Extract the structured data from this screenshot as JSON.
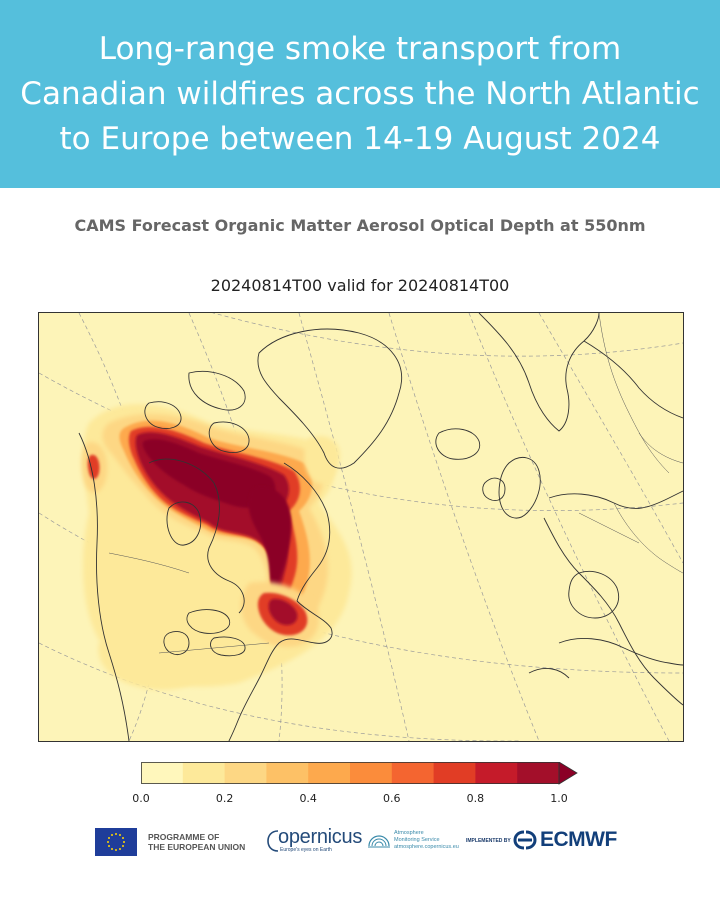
{
  "header": {
    "title_line_1": "Long-range smoke transport from",
    "title_line_2": "Canadian wildfires across the North Atlantic",
    "title_line_3": "to Europe between 14-19 August 2024"
  },
  "subtitle": "CAMS Forecast Organic Matter Aerosol Optical Depth at 550nm",
  "map": {
    "title": "20240814T00 valid for 20240814T00",
    "background_color": "#fdf4b8",
    "coastline_color": "#333333",
    "gridline_color": "#999999"
  },
  "colorbar": {
    "min": 0.0,
    "max": 1.0,
    "step": 0.1,
    "extend": "max",
    "colors": [
      "#fff7bc",
      "#fde99a",
      "#fdd784",
      "#fdc166",
      "#fda94d",
      "#fb8c3b",
      "#f46530",
      "#e13d25",
      "#c51b2a",
      "#a30f2a",
      "#8b0026"
    ],
    "ticks": [
      "0.0",
      "0.2",
      "0.4",
      "0.6",
      "0.8",
      "1.0"
    ]
  },
  "footer": {
    "eu_line_1": "PROGRAMME OF",
    "eu_line_2": "THE EUROPEAN UNION",
    "copernicus_word": "opernicus",
    "copernicus_tagline": "Europe's eyes on Earth",
    "cams_line_1": "Atmosphere",
    "cams_line_2": "Monitoring Service",
    "cams_line_3": "atmosphere.copernicus.eu",
    "implemented_by": "IMPLEMENTED BY",
    "ecmwf": "ECMWF"
  }
}
